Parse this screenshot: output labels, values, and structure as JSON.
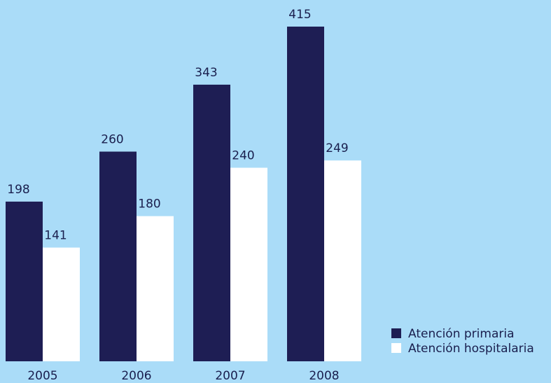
{
  "chart_data": {
    "type": "bar",
    "categories": [
      "2005",
      "2006",
      "2007",
      "2008"
    ],
    "series": [
      {
        "name": "Atención primaria",
        "values": [
          198,
          260,
          343,
          415
        ],
        "color": "#1e1e54"
      },
      {
        "name": "Atención hospitalaria",
        "values": [
          141,
          180,
          240,
          249
        ],
        "color": "#ffffff"
      }
    ],
    "title": "",
    "xlabel": "",
    "ylabel": "",
    "ylim": [
      0,
      415
    ],
    "grid": false,
    "legend_position": "bottom-right",
    "data_labels": true
  },
  "colors": {
    "background": "#aadcf8",
    "text": "#1a1f4e"
  }
}
